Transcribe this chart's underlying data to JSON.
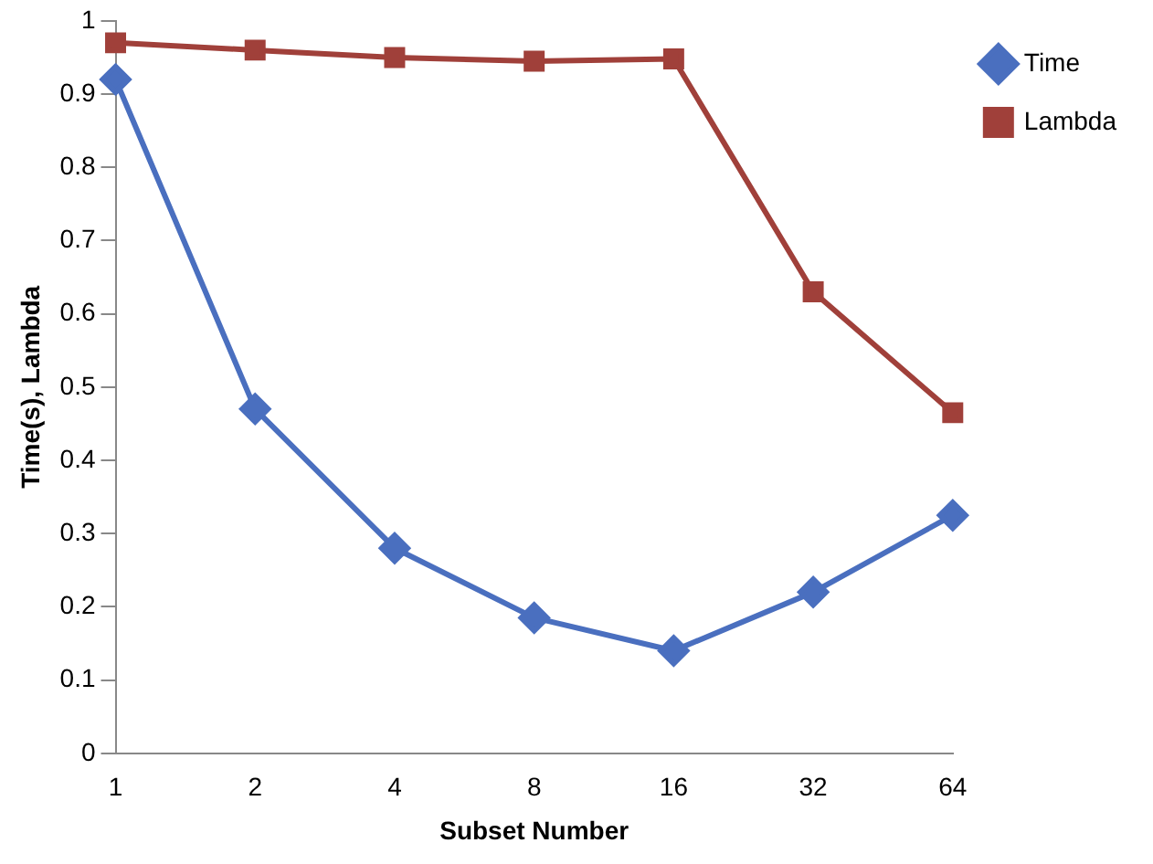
{
  "chart_data": {
    "type": "line",
    "xlabel": "Subset Number",
    "ylabel": "Time(s), Lambda",
    "categories": [
      "1",
      "2",
      "4",
      "8",
      "16",
      "32",
      "64"
    ],
    "series": [
      {
        "name": "Time",
        "color": "#4a6fbf",
        "marker": "diamond",
        "values": [
          0.92,
          0.47,
          0.28,
          0.185,
          0.14,
          0.22,
          0.325
        ]
      },
      {
        "name": "Lambda",
        "color": "#a0403a",
        "marker": "square",
        "values": [
          0.97,
          0.96,
          0.95,
          0.945,
          0.948,
          0.63,
          0.465
        ]
      }
    ],
    "ylim": [
      0,
      1
    ],
    "yticks": [
      0,
      0.1,
      0.2,
      0.3,
      0.4,
      0.5,
      0.6,
      0.7,
      0.8,
      0.9,
      1
    ],
    "grid": false,
    "legend": "top right"
  }
}
